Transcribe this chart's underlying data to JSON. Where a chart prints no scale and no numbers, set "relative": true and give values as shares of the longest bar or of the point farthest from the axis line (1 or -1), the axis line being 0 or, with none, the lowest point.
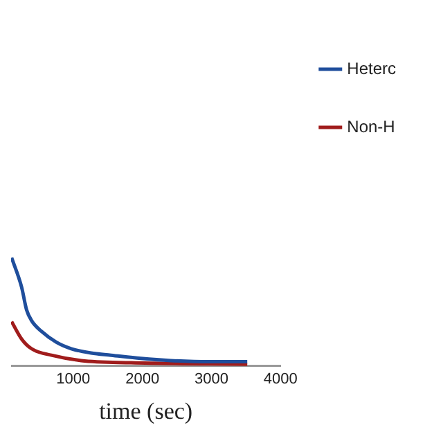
{
  "chart_data": {
    "type": "line",
    "xlabel": "time (sec)",
    "relative": true,
    "xlim": [
      100,
      4000
    ],
    "xticks": [
      1000,
      2000,
      3000,
      4000
    ],
    "series": [
      {
        "name": "Heterc",
        "color": "#1f4e9c",
        "x": [
          108,
          252,
          324,
          396,
          540,
          755,
          971,
          1259,
          1547,
          1979,
          2410,
          2986,
          3518
        ],
        "values": [
          1,
          0.73,
          0.52,
          0.42,
          0.32,
          0.22,
          0.16,
          0.12,
          0.1,
          0.07,
          0.05,
          0.04,
          0.04
        ]
      },
      {
        "name": "Non-H",
        "color": "#a01c1c",
        "x": [
          108,
          252,
          396,
          684,
          1115,
          1835,
          3518
        ],
        "values": [
          0.41,
          0.25,
          0.16,
          0.1,
          0.05,
          0.03,
          0.015
        ]
      }
    ],
    "legend": "right",
    "marker": "none",
    "line_style": "solid"
  }
}
